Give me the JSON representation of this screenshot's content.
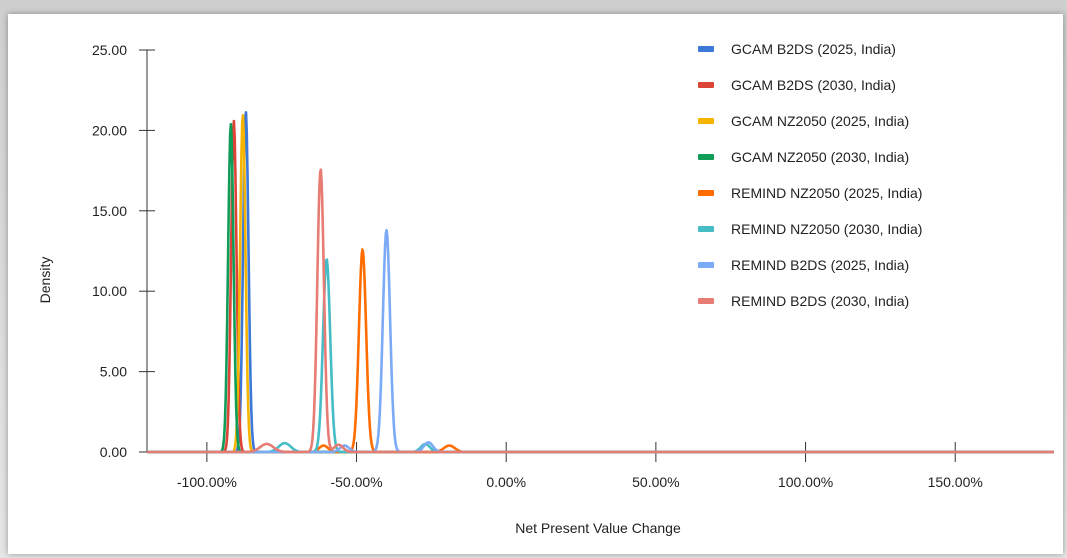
{
  "chart_data": {
    "type": "line",
    "xlabel": "Net Present Value Change",
    "ylabel": "Density",
    "xlim": [
      -120,
      183
    ],
    "ylim": [
      0,
      25
    ],
    "xticks": [
      -100,
      -50,
      0,
      50,
      100,
      150
    ],
    "xtick_labels": [
      "-100.00%",
      "-50.00%",
      "0.00%",
      "50.00%",
      "100.00%",
      "150.00%"
    ],
    "yticks": [
      0,
      5,
      10,
      15,
      20,
      25
    ],
    "ytick_labels": [
      "0.00",
      "5.00",
      "10.00",
      "15.00",
      "20.00",
      "25.00"
    ],
    "grid": false,
    "legend_position": "top-right",
    "series": [
      {
        "name": "GCAM B2DS (2025, India)",
        "color": "#3c78d8",
        "components": [
          {
            "mean": -87,
            "sd": 0.9,
            "peak": 21.2
          }
        ]
      },
      {
        "name": "GCAM B2DS (2030, India)",
        "color": "#db4437",
        "components": [
          {
            "mean": -91,
            "sd": 0.9,
            "peak": 20.6
          }
        ]
      },
      {
        "name": "GCAM NZ2050 (2025, India)",
        "color": "#f4b400",
        "components": [
          {
            "mean": -88,
            "sd": 0.9,
            "peak": 21.0
          }
        ]
      },
      {
        "name": "GCAM NZ2050 (2030, India)",
        "color": "#0f9d58",
        "components": [
          {
            "mean": -92,
            "sd": 0.9,
            "peak": 20.4
          }
        ]
      },
      {
        "name": "REMIND NZ2050 (2025, India)",
        "color": "#ff6d01",
        "components": [
          {
            "mean": -48,
            "sd": 1.2,
            "peak": 12.6
          },
          {
            "mean": -61,
            "sd": 1.5,
            "peak": 0.4
          },
          {
            "mean": -19,
            "sd": 1.8,
            "peak": 0.4
          }
        ]
      },
      {
        "name": "REMIND NZ2050 (2030, India)",
        "color": "#46bdc6",
        "components": [
          {
            "mean": -60,
            "sd": 1.2,
            "peak": 12.0
          },
          {
            "mean": -74,
            "sd": 2.0,
            "peak": 0.55
          },
          {
            "mean": -27,
            "sd": 1.5,
            "peak": 0.5
          }
        ]
      },
      {
        "name": "REMIND B2DS (2025, India)",
        "color": "#7baaf7",
        "components": [
          {
            "mean": -40,
            "sd": 1.2,
            "peak": 13.8
          },
          {
            "mean": -54,
            "sd": 1.5,
            "peak": 0.4
          },
          {
            "mean": -26,
            "sd": 1.5,
            "peak": 0.6
          }
        ]
      },
      {
        "name": "REMIND B2DS (2030, India)",
        "color": "#e67c73",
        "components": [
          {
            "mean": -62,
            "sd": 1.1,
            "peak": 17.6
          },
          {
            "mean": -80,
            "sd": 2.2,
            "peak": 0.5
          },
          {
            "mean": -56,
            "sd": 1.5,
            "peak": 0.45
          }
        ]
      }
    ]
  }
}
